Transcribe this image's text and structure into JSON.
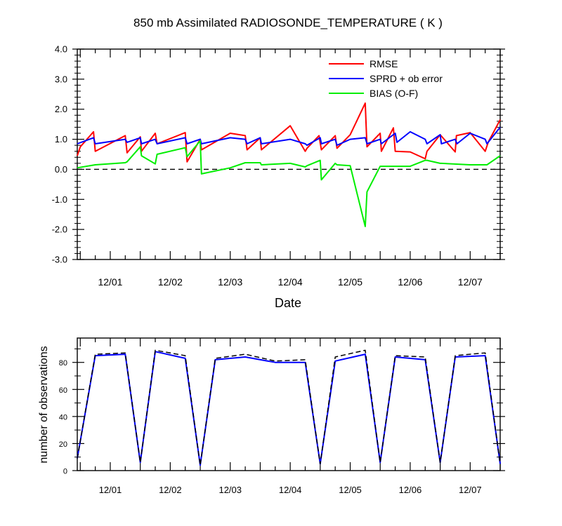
{
  "title": "850 mb Assimilated RADIOSONDE_TEMPERATURE ( K )",
  "chart_data": [
    {
      "type": "line",
      "xlabel": "Date",
      "ylabel": "",
      "x_tick_labels": [
        "12/01",
        "12/02",
        "12/03",
        "12/04",
        "12/05",
        "12/06",
        "12/07"
      ],
      "ylim": [
        -3.0,
        4.0
      ],
      "y_tick_labels": [
        "4.0",
        "3.0",
        "2.0",
        "1.0",
        "0.0",
        "-1.0",
        "-2.0",
        "-3.0"
      ],
      "zero_line": "dashed",
      "legend_position": "top-right",
      "series": [
        {
          "name": "RMSE",
          "color": "#ff0000",
          "x": [
            -0.05,
            0.0,
            0.22,
            0.25,
            0.75,
            0.78,
            1.0,
            1.02,
            1.25,
            1.28,
            1.75,
            1.78,
            2.0,
            2.02,
            2.5,
            2.75,
            2.78,
            3.0,
            3.02,
            3.5,
            3.75,
            3.78,
            3.98,
            4.02,
            4.25,
            4.28,
            4.5,
            4.75,
            4.78,
            5.0,
            5.02,
            5.22,
            5.25,
            5.5,
            5.75,
            5.78,
            6.0,
            6.25,
            6.27,
            6.5,
            6.75,
            6.8,
            7.0
          ],
          "y": [
            0.45,
            0.75,
            1.25,
            0.6,
            1.12,
            0.55,
            1.08,
            0.6,
            1.2,
            0.85,
            1.22,
            0.25,
            1.0,
            0.65,
            1.2,
            1.12,
            0.65,
            1.05,
            0.65,
            1.45,
            0.6,
            0.7,
            1.12,
            0.65,
            1.12,
            0.7,
            1.15,
            2.2,
            0.75,
            1.2,
            0.6,
            1.38,
            0.6,
            0.58,
            0.35,
            0.6,
            1.15,
            0.58,
            1.12,
            1.22,
            0.6,
            0.9,
            1.65
          ]
        },
        {
          "name": "SPRD + ob error",
          "color": "#0000ff",
          "x": [
            -0.05,
            0.22,
            0.25,
            0.75,
            0.78,
            1.0,
            1.02,
            1.25,
            1.28,
            1.75,
            1.78,
            2.0,
            2.02,
            2.5,
            2.75,
            2.78,
            3.0,
            3.02,
            3.5,
            3.75,
            3.78,
            4.0,
            4.02,
            4.25,
            4.28,
            4.5,
            4.75,
            4.78,
            5.0,
            5.02,
            5.25,
            5.28,
            5.5,
            5.75,
            5.78,
            6.0,
            6.02,
            6.25,
            6.28,
            6.5,
            6.75,
            6.78,
            7.0
          ],
          "y": [
            0.85,
            1.05,
            0.85,
            1.0,
            0.9,
            1.05,
            0.85,
            1.0,
            0.85,
            1.05,
            0.85,
            1.0,
            0.85,
            1.05,
            1.0,
            0.85,
            1.05,
            0.85,
            1.0,
            0.85,
            0.8,
            1.05,
            0.85,
            1.0,
            0.8,
            1.0,
            1.05,
            0.85,
            1.0,
            0.85,
            1.2,
            0.9,
            1.25,
            1.0,
            0.85,
            1.15,
            0.85,
            1.0,
            0.85,
            1.2,
            1.0,
            0.85,
            1.4
          ]
        },
        {
          "name": "BIAS (O-F)",
          "color": "#00ee00",
          "x": [
            -0.05,
            0.25,
            0.75,
            0.78,
            1.0,
            1.02,
            1.25,
            1.28,
            1.75,
            1.78,
            2.0,
            2.02,
            2.5,
            2.75,
            2.78,
            3.0,
            3.02,
            3.5,
            3.75,
            3.78,
            4.0,
            4.02,
            4.25,
            4.28,
            4.5,
            4.75,
            4.78,
            5.0,
            5.02,
            5.5,
            5.75,
            5.78,
            6.0,
            6.02,
            6.5,
            6.75,
            6.78,
            7.0
          ],
          "y": [
            0.05,
            0.15,
            0.22,
            0.25,
            0.75,
            0.45,
            0.18,
            0.5,
            0.72,
            0.42,
            0.95,
            -0.15,
            0.05,
            0.22,
            0.22,
            0.22,
            0.15,
            0.2,
            0.08,
            0.12,
            0.3,
            -0.35,
            0.2,
            0.15,
            0.12,
            -1.9,
            -0.75,
            0.1,
            0.1,
            0.1,
            0.3,
            0.3,
            0.2,
            0.2,
            0.15,
            0.15,
            0.15,
            0.45
          ]
        }
      ]
    },
    {
      "type": "line",
      "xlabel": "",
      "ylabel": "number of observations",
      "x_tick_labels": [
        "12/01",
        "12/02",
        "12/03",
        "12/04",
        "12/05",
        "12/06",
        "12/07"
      ],
      "ylim": [
        0,
        98
      ],
      "y_tick_labels": [
        "0",
        "20",
        "40",
        "60",
        "80"
      ],
      "legend_position": "none",
      "series": [
        {
          "color": "#0000ff",
          "style": "solid",
          "x": [
            -0.05,
            0.25,
            0.75,
            1.0,
            1.25,
            1.75,
            2.0,
            2.25,
            2.75,
            3.25,
            3.75,
            4.0,
            4.25,
            4.75,
            5.0,
            5.25,
            5.75,
            6.0,
            6.25,
            6.75,
            7.0
          ],
          "y": [
            9,
            85,
            86,
            6,
            88,
            83,
            4,
            82,
            84,
            80,
            80,
            5,
            81,
            86,
            6,
            84,
            82,
            6,
            84,
            85,
            5
          ]
        },
        {
          "color": "#000000",
          "style": "dashed",
          "x": [
            -0.05,
            0.25,
            0.75,
            1.0,
            1.25,
            1.75,
            2.0,
            2.25,
            2.75,
            3.25,
            3.75,
            4.0,
            4.25,
            4.75,
            5.0,
            5.25,
            5.75,
            6.0,
            6.25,
            6.75,
            7.0
          ],
          "y": [
            9,
            86,
            87,
            6,
            89,
            85,
            4,
            83,
            86,
            81,
            82,
            5,
            84,
            89,
            6,
            85,
            84,
            6,
            85,
            87,
            5
          ]
        }
      ]
    }
  ]
}
